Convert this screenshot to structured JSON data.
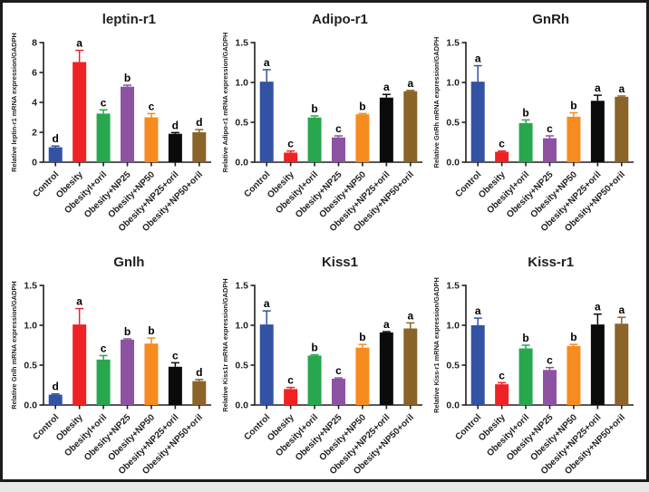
{
  "figure": {
    "background": "#ffffff",
    "border_color": "#1c1c1c"
  },
  "style": {
    "bar_colors": [
      "#3452a4",
      "#ee2224",
      "#28a74e",
      "#8d52a2",
      "#f68b1f",
      "#0b0b0b",
      "#8a6428"
    ],
    "axis_color": "#231f20",
    "letter_color": "#000000"
  },
  "categories": [
    "Control",
    "Obesity",
    "Obesityl+oril",
    "Obesity+NP25",
    "Obesity+NP50",
    "Obesity+NP25+oril",
    "Obesity+NP50+oril"
  ],
  "chart_data": [
    {
      "type": "bar",
      "title": "leptin-r1",
      "ylabel": "Relative leptin-r1 mRNA expression/GADPH",
      "xlabel": "",
      "ylim": [
        0,
        8
      ],
      "yticks": [
        "0",
        "2",
        "4",
        "6",
        "8"
      ],
      "grid": "off",
      "legend": "none",
      "categories": [
        "Control",
        "Obesity",
        "Obesityl+oril",
        "Obesity+NP25",
        "Obesity+NP50",
        "Obesity+NP25+oril",
        "Obesity+NP50+oril"
      ],
      "values": [
        1.0,
        6.7,
        3.25,
        5.05,
        3.0,
        1.9,
        2.0
      ],
      "errors": [
        0.08,
        0.78,
        0.25,
        0.1,
        0.25,
        0.08,
        0.18
      ],
      "sig_letters": [
        "d",
        "a",
        "c",
        "b",
        "c",
        "d",
        "d"
      ]
    },
    {
      "type": "bar",
      "title": "Adipo-r1",
      "ylabel": "Relative Adipo-r1 mRNA expression/GADPH",
      "xlabel": "",
      "ylim": [
        0,
        1.5
      ],
      "yticks": [
        "0.0",
        "0.5",
        "1.0",
        "1.5"
      ],
      "grid": "off",
      "legend": "none",
      "categories": [
        "Control",
        "Obesity",
        "Obesityl+oril",
        "Obesity+NP25",
        "Obesity+NP50",
        "Obesity+NP25+oril",
        "Obesity+NP50+oril"
      ],
      "values": [
        1.01,
        0.12,
        0.56,
        0.31,
        0.6,
        0.81,
        0.89
      ],
      "errors": [
        0.15,
        0.02,
        0.02,
        0.02,
        0.01,
        0.04,
        0.01
      ],
      "sig_letters": [
        "a",
        "c",
        "b",
        "c",
        "b",
        "a",
        "a"
      ]
    },
    {
      "type": "bar",
      "title": "GnRh",
      "ylabel": "Relative GnRh mRNA expression/GADPH",
      "xlabel": "",
      "ylim": [
        0,
        1.5
      ],
      "yticks": [
        "0.0",
        "0.5",
        "1.0",
        "1.5"
      ],
      "grid": "off",
      "legend": "none",
      "categories": [
        "Control",
        "Obesity",
        "Obesityl+oril",
        "Obesity+NP25",
        "Obesity+NP50",
        "Obesity+NP25+oril",
        "Obesity+NP50+oril"
      ],
      "values": [
        1.01,
        0.13,
        0.49,
        0.3,
        0.57,
        0.77,
        0.82
      ],
      "errors": [
        0.2,
        0.01,
        0.04,
        0.03,
        0.05,
        0.07,
        0.01
      ],
      "sig_letters": [
        "a",
        "c",
        "b",
        "c",
        "b",
        "a",
        "a"
      ]
    },
    {
      "type": "bar",
      "title": "Gnlh",
      "ylabel": "Relative Gnlh mRNA expression/GADPH",
      "xlabel": "",
      "ylim": [
        0,
        1.5
      ],
      "yticks": [
        "0.0",
        "0.5",
        "1.0",
        "1.5"
      ],
      "grid": "off",
      "legend": "none",
      "categories": [
        "Control",
        "Obesity",
        "Obesityl+oril",
        "Obesity+NP25",
        "Obesity+NP50",
        "Obesity+NP25+oril",
        "Obesity+NP50+oril"
      ],
      "values": [
        0.13,
        1.01,
        0.57,
        0.82,
        0.77,
        0.48,
        0.3
      ],
      "errors": [
        0.01,
        0.2,
        0.05,
        0.01,
        0.07,
        0.05,
        0.02
      ],
      "sig_letters": [
        "d",
        "a",
        "c",
        "b",
        "b",
        "c",
        "d"
      ]
    },
    {
      "type": "bar",
      "title": "Kiss1",
      "ylabel": "Relative Kiss1r mRNA expression/GADPH",
      "xlabel": "",
      "ylim": [
        0,
        1.5
      ],
      "yticks": [
        "0.0",
        "0.5",
        "1.0",
        "1.5"
      ],
      "grid": "off",
      "legend": "none",
      "categories": [
        "Control",
        "Obesity",
        "Obesityl+oril",
        "Obesity+NP25",
        "Obesity+NP50",
        "Obesity+NP25+oril",
        "Obesity+NP50+oril"
      ],
      "values": [
        1.01,
        0.2,
        0.62,
        0.33,
        0.72,
        0.91,
        0.96
      ],
      "errors": [
        0.17,
        0.02,
        0.01,
        0.01,
        0.04,
        0.01,
        0.07
      ],
      "sig_letters": [
        "a",
        "c",
        "b",
        "c",
        "b",
        "a",
        "a"
      ]
    },
    {
      "type": "bar",
      "title": "Kiss-r1",
      "ylabel": "Relative Kiss-r1 mRNA expression/GADPH",
      "xlabel": "",
      "ylim": [
        0,
        1.5
      ],
      "yticks": [
        "0.0",
        "0.5",
        "1.0",
        "1.5"
      ],
      "grid": "off",
      "legend": "none",
      "categories": [
        "Control",
        "Obesity",
        "Obesityl+oril",
        "Obesity+NP25",
        "Obesity+NP50",
        "Obesity+NP25+oril",
        "Obesity+NP50+oril"
      ],
      "values": [
        1.0,
        0.26,
        0.71,
        0.44,
        0.74,
        1.01,
        1.02
      ],
      "errors": [
        0.09,
        0.02,
        0.04,
        0.03,
        0.02,
        0.13,
        0.08
      ],
      "sig_letters": [
        "a",
        "c",
        "b",
        "c",
        "b",
        "a",
        "a"
      ]
    }
  ]
}
